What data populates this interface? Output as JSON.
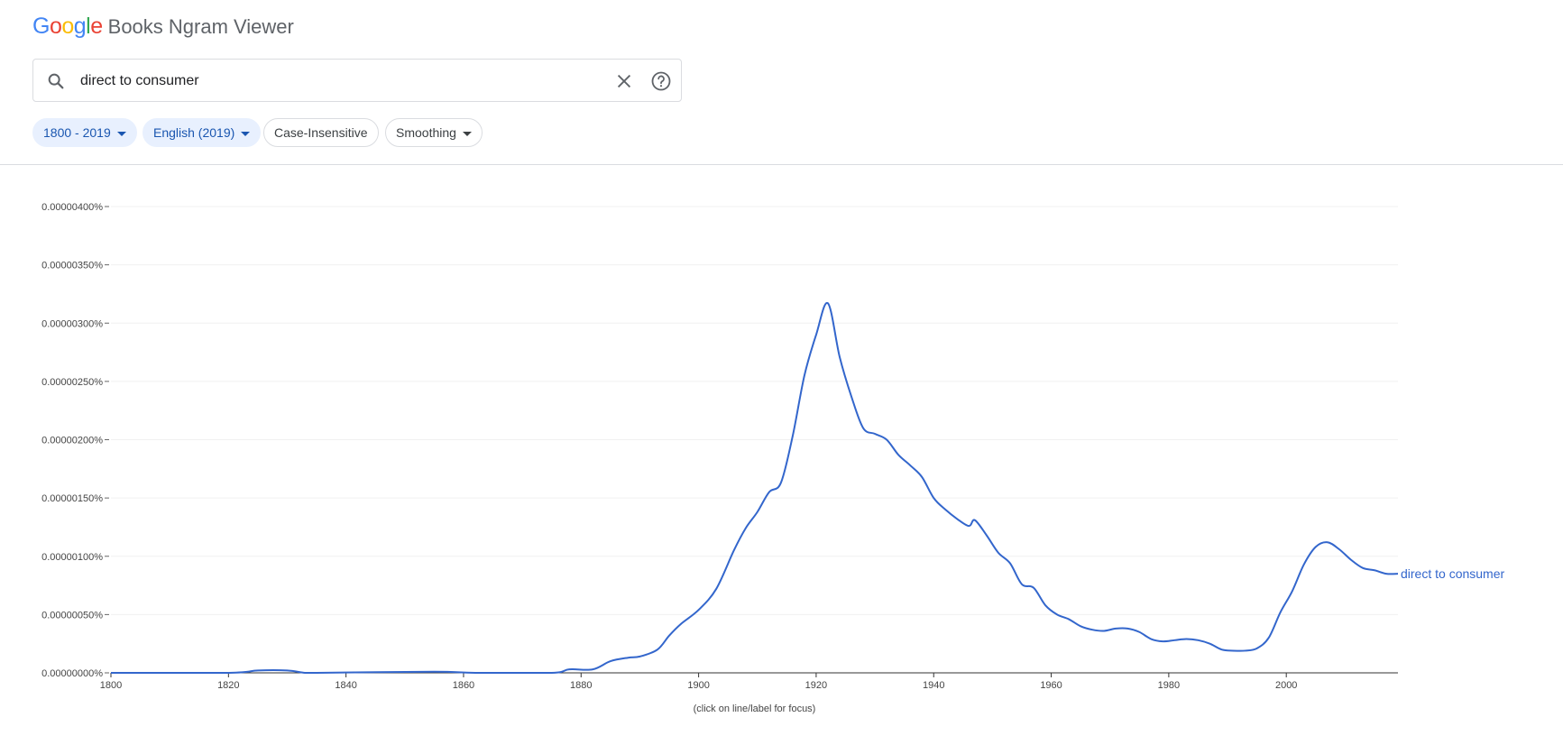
{
  "header": {
    "logo_letters": [
      {
        "ch": "G",
        "color": "#4285F4"
      },
      {
        "ch": "o",
        "color": "#EA4335"
      },
      {
        "ch": "o",
        "color": "#FBBC05"
      },
      {
        "ch": "g",
        "color": "#4285F4"
      },
      {
        "ch": "l",
        "color": "#34A853"
      },
      {
        "ch": "e",
        "color": "#EA4335"
      }
    ],
    "app_title": "Books Ngram Viewer"
  },
  "search": {
    "value": "direct to consumer"
  },
  "chips": {
    "year_range": "1800 - 2019",
    "corpus": "English (2019)",
    "case": "Case-Insensitive",
    "smoothing": "Smoothing"
  },
  "colors": {
    "accent": "#1a56b0",
    "series": "#3366cc",
    "chip_bg": "#e8f0fe"
  },
  "chart_data": {
    "type": "line",
    "title": "",
    "xlabel": "",
    "ylabel": "",
    "note": "(click on line/label for focus)",
    "xlim": [
      1800,
      2019
    ],
    "ylim": [
      0,
      4e-06
    ],
    "grid": true,
    "x_ticks": [
      "1800",
      "1820",
      "1840",
      "1860",
      "1880",
      "1900",
      "1920",
      "1940",
      "1960",
      "1980",
      "2000"
    ],
    "y_ticks": [
      "0.00000000%",
      "0.00000050%",
      "0.00000100%",
      "0.00000150%",
      "0.00000200%",
      "0.00000250%",
      "0.00000300%",
      "0.00000350%",
      "0.00000400%"
    ],
    "series": [
      {
        "name": "direct to consumer",
        "color": "#3366cc",
        "x": [
          1800,
          1820,
          1825,
          1830,
          1833,
          1835,
          1855,
          1862,
          1875,
          1878,
          1882,
          1885,
          1888,
          1890,
          1893,
          1895,
          1897,
          1900,
          1903,
          1906,
          1908,
          1910,
          1912,
          1914,
          1916,
          1918,
          1920,
          1922,
          1924,
          1926,
          1928,
          1930,
          1932,
          1934,
          1936,
          1938,
          1940,
          1942,
          1944,
          1946,
          1947,
          1949,
          1951,
          1953,
          1955,
          1957,
          1959,
          1961,
          1963,
          1965,
          1967,
          1969,
          1971,
          1973,
          1975,
          1977,
          1979,
          1981,
          1983,
          1985,
          1987,
          1989,
          1991,
          1993,
          1995,
          1997,
          1999,
          2001,
          2003,
          2005,
          2007,
          2009,
          2011,
          2013,
          2015,
          2017,
          2019
        ],
        "y": [
          0,
          0,
          2e-08,
          2e-08,
          0,
          0,
          1e-08,
          0,
          0,
          3e-08,
          3e-08,
          1e-07,
          1.3e-07,
          1.4e-07,
          2e-07,
          3.2e-07,
          4.2e-07,
          5.4e-07,
          7.2e-07,
          1.05e-06,
          1.24e-06,
          1.38e-06,
          1.55e-06,
          1.63e-06,
          2.03e-06,
          2.55e-06,
          2.9e-06,
          3.17e-06,
          2.71e-06,
          2.37e-06,
          2.1e-06,
          2.05e-06,
          2e-06,
          1.87e-06,
          1.78e-06,
          1.68e-06,
          1.5e-06,
          1.4e-06,
          1.32e-06,
          1.26e-06,
          1.31e-06,
          1.18e-06,
          1.03e-06,
          9.4e-07,
          7.6e-07,
          7.3e-07,
          5.8e-07,
          5e-07,
          4.6e-07,
          4e-07,
          3.7e-07,
          3.6e-07,
          3.8e-07,
          3.8e-07,
          3.5e-07,
          2.9e-07,
          2.7e-07,
          2.8e-07,
          2.9e-07,
          2.8e-07,
          2.5e-07,
          2e-07,
          1.9e-07,
          1.9e-07,
          2.1e-07,
          3e-07,
          5.2e-07,
          7e-07,
          9.3e-07,
          1.08e-06,
          1.12e-06,
          1.06e-06,
          9.7e-07,
          9e-07,
          8.8e-07,
          8.5e-07,
          8.5e-07
        ]
      }
    ]
  }
}
